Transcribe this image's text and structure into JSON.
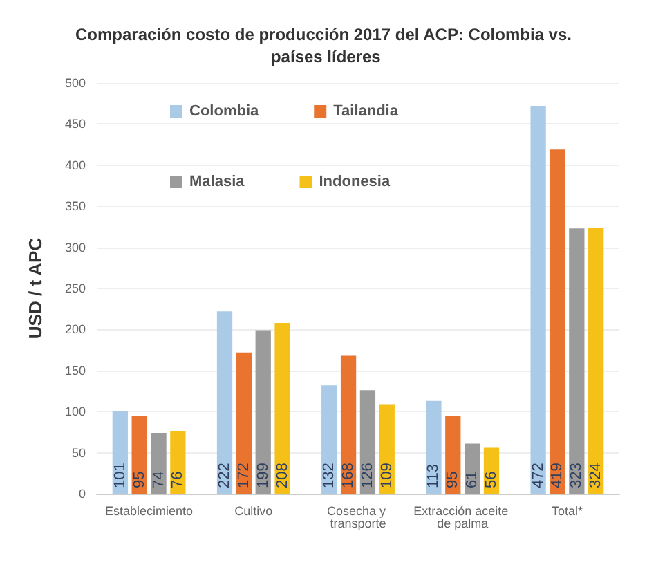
{
  "chart_data": {
    "type": "bar",
    "title": "Comparación costo de producción 2017 del ACP: Colombia vs. países líderes",
    "ylabel": "USD / t APC",
    "categories": [
      "Establecimiento",
      "Cultivo",
      "Cosecha y transporte",
      "Extracción aceite de palma",
      "Total*"
    ],
    "series": [
      {
        "name": "Colombia",
        "color": "#a9cbe8",
        "values": [
          101,
          222,
          132,
          113,
          472
        ]
      },
      {
        "name": "Tailandia",
        "color": "#e8742f",
        "values": [
          95,
          172,
          168,
          95,
          419
        ]
      },
      {
        "name": "Malasia",
        "color": "#9b9b9b",
        "values": [
          74,
          199,
          126,
          61,
          323
        ]
      },
      {
        "name": "Indonesia",
        "color": "#f5c018",
        "values": [
          76,
          208,
          109,
          56,
          324
        ]
      }
    ],
    "ylim": [
      0,
      500
    ],
    "yticks": [
      0,
      50,
      100,
      150,
      200,
      250,
      300,
      350,
      400,
      450,
      500
    ],
    "grid": "y",
    "legend": "top left",
    "data_labels": true
  }
}
